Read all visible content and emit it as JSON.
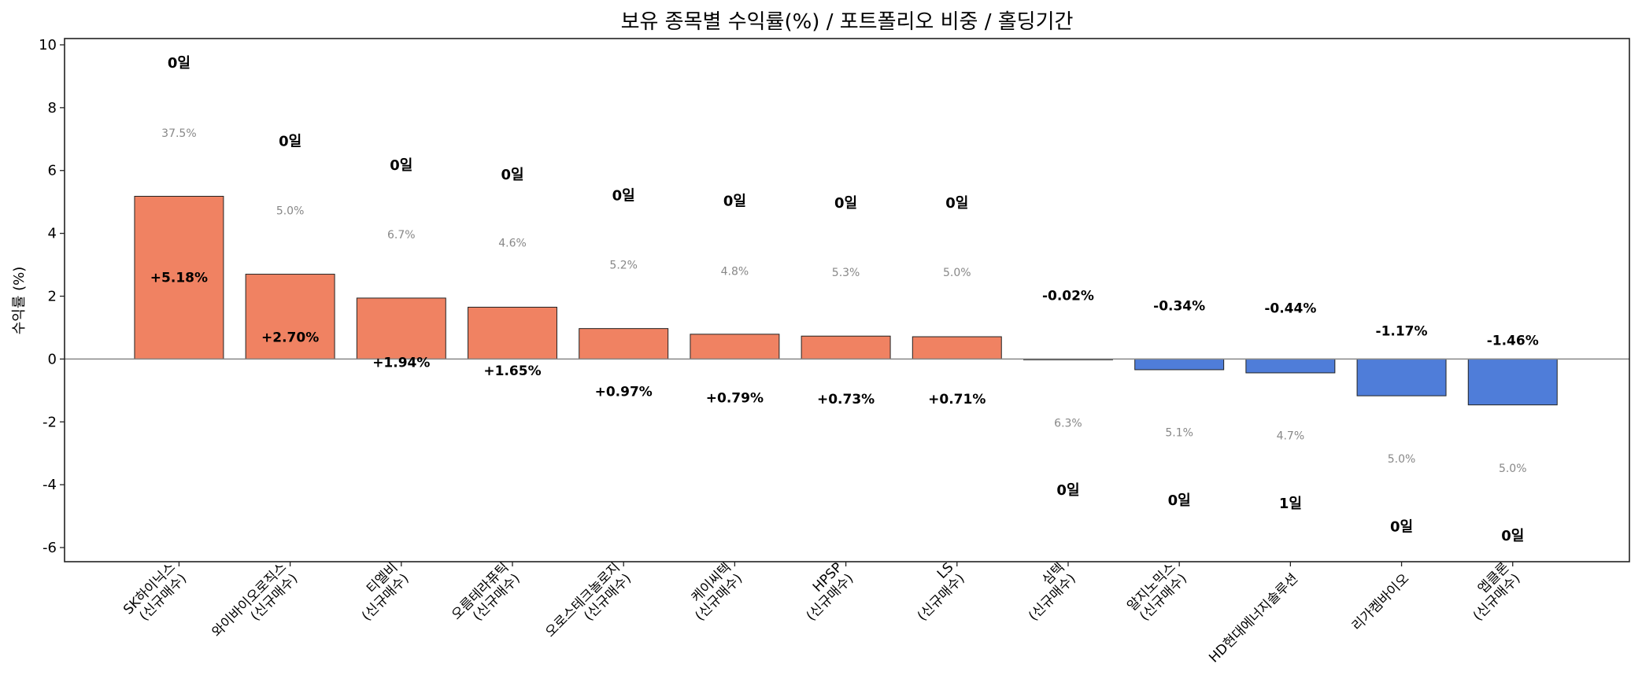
{
  "chart_data": {
    "type": "bar",
    "title": "보유 종목별 수익률(%) / 포트폴리오 비중 / 홀딩기간",
    "xlabel": "",
    "ylabel": "수익률 (%)",
    "ylim": [
      -6.45,
      10.2
    ],
    "xlim": [
      -1.03,
      13.05
    ],
    "yticks": [
      -6,
      -4,
      -2,
      0,
      2,
      4,
      6,
      8,
      10
    ],
    "grid": false,
    "colors": {
      "positive": "#F08262",
      "negative": "#4F7DD9",
      "zero_line": "#888888",
      "weight_text": "#888888"
    },
    "categories": [
      [
        "SK하이닉스",
        "(신규매수)"
      ],
      [
        "와이바이오로직스",
        "(신규매수)"
      ],
      [
        "티엘비",
        "(신규매수)"
      ],
      [
        "오름테라퓨틱",
        "(신규매수)"
      ],
      [
        "오로스테크놀로지",
        "(신규매수)"
      ],
      [
        "케이씨텍",
        "(신규매수)"
      ],
      [
        "HPSP",
        "(신규매수)"
      ],
      [
        "LS",
        "(신규매수)"
      ],
      [
        "심텍",
        "(신규매수)"
      ],
      [
        "알지노믹스",
        "(신규매수)"
      ],
      [
        "HD현대에너지솔루션"
      ],
      [
        "리가켐바이오"
      ],
      [
        "엡클론",
        "(신규매수)"
      ]
    ],
    "values": [
      5.18,
      2.7,
      1.94,
      1.65,
      0.97,
      0.79,
      0.73,
      0.71,
      -0.02,
      -0.34,
      -0.44,
      -1.17,
      -1.46
    ],
    "return_labels": [
      "+5.18%",
      "+2.70%",
      "+1.94%",
      "+1.65%",
      "+0.97%",
      "+0.79%",
      "+0.73%",
      "+0.71%",
      "-0.02%",
      "-0.34%",
      "-0.44%",
      "-1.17%",
      "-1.46%"
    ],
    "return_label_y": [
      2.6,
      0.7,
      -0.1,
      -0.37,
      -1.03,
      -1.23,
      -1.27,
      -1.27,
      2.03,
      1.7,
      1.63,
      0.9,
      0.6
    ],
    "weight_labels": [
      "37.5%",
      "5.0%",
      "6.7%",
      "4.6%",
      "5.2%",
      "4.8%",
      "5.3%",
      "5.0%",
      "6.3%",
      "5.1%",
      "4.7%",
      "5.0%",
      "5.0%"
    ],
    "weight_label_y": [
      7.2,
      4.73,
      3.97,
      3.7,
      3.0,
      2.8,
      2.77,
      2.77,
      -2.03,
      -2.33,
      -2.43,
      -3.17,
      -3.47
    ],
    "holding_labels": [
      "0일",
      "0일",
      "0일",
      "0일",
      "0일",
      "0일",
      "0일",
      "0일",
      "0일",
      "0일",
      "1일",
      "0일",
      "0일"
    ],
    "holding_label_y": [
      9.43,
      6.93,
      6.17,
      5.87,
      5.2,
      5.03,
      4.97,
      4.97,
      -4.17,
      -4.5,
      -4.6,
      -5.33,
      -5.63
    ]
  }
}
